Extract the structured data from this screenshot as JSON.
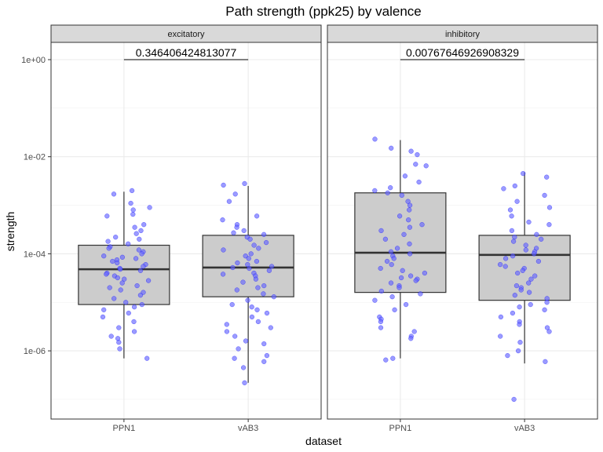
{
  "chart_data": {
    "type": "boxplot",
    "title": "Path strength (ppk25) by valence",
    "xlabel": "dataset",
    "ylabel": "strength",
    "y_scale": "log10",
    "ylim": [
      1e-07,
      3.0
    ],
    "y_ticks": [
      {
        "value": 1.0,
        "label": "1e+00"
      },
      {
        "value": 0.01,
        "label": "1e-02"
      },
      {
        "value": 0.0001,
        "label": "1e-04"
      },
      {
        "value": 1e-06,
        "label": "1e-06"
      }
    ],
    "categories": [
      "PPN1",
      "vAB3"
    ],
    "grid": true,
    "colors": {
      "box_fill": "#cccccc",
      "box_edge": "#333333",
      "point_fill": "#6666ff",
      "point_edge": "#0000ff",
      "strip_bg": "#d9d9d9",
      "panel_border": "#333333",
      "grid_major": "#ebebeb"
    },
    "facets": [
      {
        "label": "excitatory",
        "p_value": "0.346406424813077",
        "boxes": [
          {
            "category": "PPN1",
            "min": 7e-07,
            "q1": 9e-06,
            "median": 4.8e-05,
            "q3": 0.00015,
            "max": 0.0019
          },
          {
            "category": "vAB3",
            "min": 2.2e-07,
            "q1": 1.3e-05,
            "median": 5.2e-05,
            "q3": 0.00024,
            "max": 0.0025
          }
        ],
        "points": [
          {
            "category": "PPN1",
            "values": [
              0.002,
              0.0017,
              0.0011,
              0.0009,
              0.0008,
              0.00065,
              0.0006,
              0.0004,
              0.00035,
              0.0003,
              0.00026,
              0.00022,
              0.0002,
              0.00018,
              0.00016,
              0.00014,
              0.00013,
              0.00012,
              0.00011,
              0.0001,
              9e-05,
              8.5e-05,
              8e-05,
              7.5e-05,
              7e-05,
              6.5e-05,
              6e-05,
              5.5e-05,
              5e-05,
              4.8e-05,
              4.5e-05,
              4e-05,
              3.8e-05,
              3.5e-05,
              3.2e-05,
              3e-05,
              2.8e-05,
              2.5e-05,
              2.2e-05,
              2e-05,
              1.8e-05,
              1.6e-05,
              1.4e-05,
              1.2e-05,
              1e-05,
              9e-06,
              8e-06,
              7e-06,
              6e-06,
              5e-06,
              4e-06,
              3e-06,
              2.5e-06,
              2e-06,
              1.8e-06,
              1.5e-06,
              1.1e-06,
              7e-07
            ]
          },
          {
            "category": "vAB3",
            "values": [
              0.0028,
              0.0026,
              0.0017,
              0.0012,
              0.0006,
              0.0005,
              0.0004,
              0.00035,
              0.0003,
              0.00027,
              0.00025,
              0.00022,
              0.0002,
              0.00017,
              0.00015,
              0.00013,
              0.00012,
              0.0001,
              9e-05,
              8e-05,
              7e-05,
              6.5e-05,
              6e-05,
              5.5e-05,
              5.2e-05,
              5e-05,
              4.5e-05,
              4e-05,
              3.8e-05,
              3.5e-05,
              3e-05,
              2.6e-05,
              2.2e-05,
              2e-05,
              1.8e-05,
              1.5e-05,
              1.3e-05,
              1.1e-05,
              9e-06,
              8e-06,
              7e-06,
              6e-06,
              5e-06,
              4e-06,
              3.5e-06,
              3e-06,
              2.5e-06,
              2e-06,
              1.6e-06,
              1.4e-06,
              1.1e-06,
              8e-07,
              7e-07,
              6e-07,
              4.5e-07,
              2.2e-07
            ]
          }
        ]
      },
      {
        "label": "inhibitory",
        "p_value": "0.00767646926908329",
        "boxes": [
          {
            "category": "PPN1",
            "min": 7e-07,
            "q1": 1.6e-05,
            "median": 0.000105,
            "q3": 0.0018,
            "max": 0.022
          },
          {
            "category": "vAB3",
            "min": 5.5e-07,
            "q1": 1.1e-05,
            "median": 9.5e-05,
            "q3": 0.00024,
            "max": 0.0048
          }
        ],
        "points": [
          {
            "category": "PPN1",
            "values": [
              0.023,
              0.015,
              0.013,
              0.011,
              0.007,
              0.0065,
              0.004,
              0.003,
              0.0023,
              0.002,
              0.0018,
              0.0016,
              0.0012,
              0.001,
              0.0008,
              0.0006,
              0.0005,
              0.0004,
              0.00035,
              0.0003,
              0.00025,
              0.0002,
              0.00016,
              0.00013,
              0.00011,
              0.0001,
              9e-05,
              8e-05,
              7e-05,
              6e-05,
              5e-05,
              4.5e-05,
              4e-05,
              3.5e-05,
              3.2e-05,
              3e-05,
              2.8e-05,
              2.5e-05,
              2.2e-05,
              2e-05,
              1.7e-05,
              1.5e-05,
              1.3e-05,
              1.1e-05,
              9e-06,
              7e-06,
              5e-06,
              4.5e-06,
              4e-06,
              3e-06,
              2.5e-06,
              2e-06,
              1.8e-06,
              7e-07,
              6.5e-07
            ]
          },
          {
            "category": "vAB3",
            "values": [
              0.0045,
              0.0038,
              0.0025,
              0.0022,
              0.0016,
              0.0012,
              0.0009,
              0.0008,
              0.0006,
              0.00045,
              0.0004,
              0.0003,
              0.00025,
              0.00022,
              0.0002,
              0.00018,
              0.00015,
              0.00013,
              0.00012,
              0.00011,
              0.0001,
              9e-05,
              8e-05,
              7e-05,
              6e-05,
              5.5e-05,
              5e-05,
              4.5e-05,
              4e-05,
              3.5e-05,
              3e-05,
              2.5e-05,
              2.2e-05,
              2e-05,
              1.8e-05,
              1.6e-05,
              1.4e-05,
              1.2e-05,
              1e-05,
              9e-06,
              8e-06,
              7e-06,
              6e-06,
              5e-06,
              4e-06,
              3.5e-06,
              3e-06,
              2.5e-06,
              2e-06,
              1.5e-06,
              1e-06,
              8e-07,
              6e-07,
              1e-07
            ]
          }
        ]
      }
    ]
  }
}
